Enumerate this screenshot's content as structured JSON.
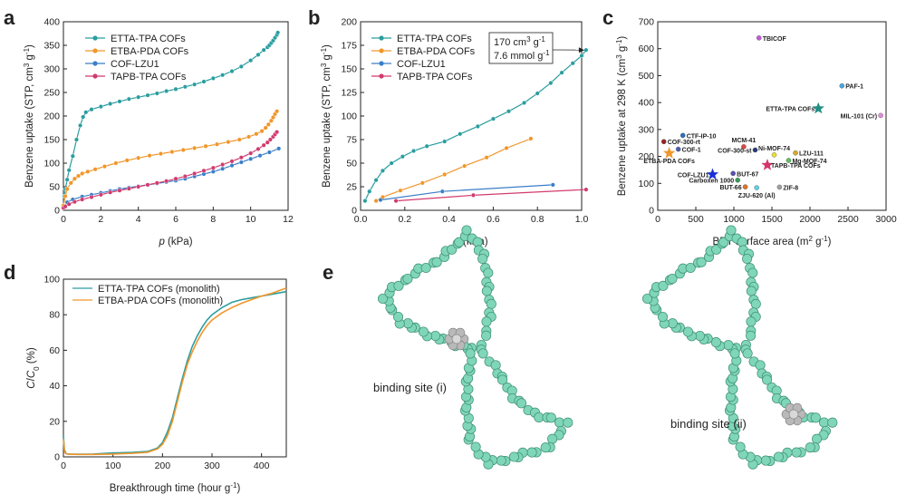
{
  "figure": {
    "panel_letters": [
      "a",
      "b",
      "c",
      "d",
      "e"
    ]
  },
  "chart_data": [
    {
      "panel": "a",
      "type": "line",
      "xlabel": "p (kPa)",
      "ylabel": "Benzene uptake (STP, cm3 g-1)",
      "xlim": [
        0,
        12
      ],
      "ylim": [
        0,
        400
      ],
      "xticks": [
        0,
        2,
        4,
        6,
        8,
        10,
        12
      ],
      "yticks": [
        0,
        50,
        100,
        150,
        200,
        250,
        300,
        350,
        400
      ],
      "legend_position": "top-left",
      "series": [
        {
          "name": "ETTA-TPA COFs",
          "color": "#2a9d9f",
          "x": [
            0,
            0.05,
            0.1,
            0.2,
            0.3,
            0.5,
            0.7,
            0.9,
            1.05,
            1.2,
            1.5,
            2.0,
            2.5,
            3.0,
            3.5,
            4.0,
            4.5,
            5.0,
            5.5,
            6.0,
            6.5,
            7.0,
            7.5,
            8.0,
            8.5,
            9.0,
            9.5,
            10.0,
            10.4,
            10.7,
            10.9,
            11.0,
            11.1,
            11.2,
            11.3,
            11.4,
            11.45
          ],
          "y": [
            10,
            30,
            45,
            65,
            85,
            115,
            150,
            180,
            198,
            208,
            214,
            220,
            226,
            231,
            236,
            240,
            244,
            248,
            253,
            257,
            262,
            267,
            273,
            280,
            287,
            295,
            305,
            318,
            330,
            340,
            346,
            350,
            355,
            360,
            366,
            372,
            377
          ]
        },
        {
          "name": "ETBA-PDA COFs",
          "color": "#f0962a",
          "x": [
            0,
            0.1,
            0.2,
            0.4,
            0.6,
            0.8,
            1.0,
            1.3,
            1.7,
            2.2,
            2.8,
            3.4,
            4.0,
            4.6,
            5.2,
            5.8,
            6.4,
            7.0,
            7.6,
            8.2,
            8.8,
            9.4,
            9.9,
            10.3,
            10.6,
            10.8,
            10.95,
            11.1,
            11.2,
            11.3,
            11.4
          ],
          "y": [
            10,
            30,
            45,
            58,
            67,
            73,
            78,
            82,
            87,
            93,
            100,
            106,
            111,
            116,
            120,
            124,
            128,
            132,
            136,
            140,
            145,
            150,
            156,
            162,
            168,
            175,
            182,
            190,
            197,
            204,
            210
          ]
        },
        {
          "name": "COF-LZU1",
          "color": "#3a7ec8",
          "x": [
            0,
            0.2,
            0.5,
            1.0,
            1.5,
            2.0,
            2.5,
            3.0,
            3.5,
            4.0,
            4.5,
            5.0,
            5.5,
            6.0,
            6.5,
            7.0,
            7.5,
            8.0,
            8.5,
            9.0,
            9.5,
            10.0,
            10.5,
            11.0,
            11.5
          ],
          "y": [
            5,
            17,
            23,
            29,
            33,
            37,
            41,
            45,
            48,
            51,
            54,
            57,
            60,
            63,
            67,
            72,
            77,
            82,
            88,
            95,
            102,
            109,
            116,
            123,
            131
          ]
        },
        {
          "name": "TAPB-TPA COFs",
          "color": "#d13b6e",
          "x": [
            0,
            0.1,
            0.3,
            0.6,
            1.0,
            1.5,
            2.0,
            2.5,
            3.0,
            3.5,
            4.0,
            4.5,
            5.0,
            5.5,
            6.0,
            6.5,
            7.0,
            7.5,
            8.0,
            8.5,
            9.0,
            9.5,
            10.0,
            10.4,
            10.7,
            10.9,
            11.05,
            11.2,
            11.3,
            11.4
          ],
          "y": [
            5,
            8,
            13,
            18,
            23,
            28,
            33,
            38,
            42,
            46,
            50,
            54,
            58,
            62,
            67,
            72,
            78,
            84,
            90,
            97,
            104,
            112,
            121,
            130,
            138,
            144,
            150,
            156,
            161,
            166
          ]
        }
      ]
    },
    {
      "panel": "b",
      "type": "line",
      "xlabel": "p (kPa)",
      "ylabel": "Benzene uptake (STP, cm3 g-1)",
      "xlim": [
        0,
        1.0
      ],
      "ylim": [
        0,
        200
      ],
      "xticks": [
        0.0,
        0.2,
        0.4,
        0.6,
        0.8,
        1.0
      ],
      "yticks": [
        0,
        25,
        50,
        75,
        100,
        125,
        150,
        175,
        200
      ],
      "legend_position": "top-left",
      "annotation": {
        "line1": "170 cm3 g-1",
        "line2": "7.6 mmol g-1",
        "x": 1.02,
        "y": 170
      },
      "series": [
        {
          "name": "ETTA-TPA COFs",
          "color": "#2a9d9f",
          "x": [
            0.02,
            0.04,
            0.07,
            0.1,
            0.14,
            0.19,
            0.24,
            0.3,
            0.38,
            0.45,
            0.53,
            0.6,
            0.67,
            0.74,
            0.8,
            0.86,
            0.91,
            0.96,
            1.0,
            1.02
          ],
          "y": [
            10,
            20,
            32,
            42,
            50,
            57,
            63,
            68,
            73,
            81,
            89,
            97,
            105,
            114,
            124,
            135,
            146,
            156,
            164,
            170
          ]
        },
        {
          "name": "ETBA-PDA COFs",
          "color": "#f0962a",
          "x": [
            0.07,
            0.1,
            0.18,
            0.28,
            0.38,
            0.47,
            0.57,
            0.66,
            0.77
          ],
          "y": [
            10,
            14,
            21,
            29,
            38,
            47,
            56,
            66,
            76
          ]
        },
        {
          "name": "COF-LZU1",
          "color": "#3a7ec8",
          "x": [
            0.09,
            0.37,
            0.87
          ],
          "y": [
            11,
            20,
            27
          ]
        },
        {
          "name": "TAPB-TPA COFs",
          "color": "#d13b6e",
          "x": [
            0.16,
            0.51,
            1.02
          ],
          "y": [
            10,
            16,
            22
          ]
        }
      ]
    },
    {
      "panel": "c",
      "type": "scatter",
      "xlabel": "BET surface area (m2 g-1)",
      "ylabel": "Benzene uptake at 298 K (cm3 g-1)",
      "xlim": [
        0,
        3000
      ],
      "ylim": [
        0,
        700
      ],
      "xticks": [
        0,
        500,
        1000,
        1500,
        2000,
        2500,
        3000
      ],
      "yticks": [
        0,
        100,
        200,
        300,
        400,
        500,
        600,
        700
      ],
      "points": [
        {
          "label": "TBICOF",
          "x": 1330,
          "y": 640,
          "color": "#c35bd6",
          "marker": "circle",
          "label_side": "right"
        },
        {
          "label": "PAF-1",
          "x": 2420,
          "y": 462,
          "color": "#4aa3e0",
          "marker": "circle",
          "label_side": "right"
        },
        {
          "label": "ETTA-TPA COFs",
          "x": 2110,
          "y": 378,
          "color": "#1f8f84",
          "marker": "star",
          "label_side": "left"
        },
        {
          "label": "MIL-101 (Cr)",
          "x": 2930,
          "y": 352,
          "color": "#e58ad8",
          "marker": "circle",
          "label_side": "left"
        },
        {
          "label": "CTF-IP-10",
          "x": 330,
          "y": 278,
          "color": "#2f6fb5",
          "marker": "circle",
          "label_side": "right"
        },
        {
          "label": "COF-300-rt",
          "x": 80,
          "y": 255,
          "color": "#9c2424",
          "marker": "circle",
          "label_side": "right"
        },
        {
          "label": "MCM-41",
          "x": 1130,
          "y": 236,
          "color": "#e04848",
          "marker": "circle",
          "label_side": "top"
        },
        {
          "label": "COF-300-st",
          "x": 1280,
          "y": 224,
          "color": "#2a3b7a",
          "marker": "circle",
          "label_side": "left"
        },
        {
          "label": "COF-1",
          "x": 270,
          "y": 227,
          "color": "#4f5db0",
          "marker": "circle",
          "label_side": "right"
        },
        {
          "label": "Ni-MOF-74",
          "x": 1530,
          "y": 206,
          "color": "#e8de3a",
          "marker": "circle",
          "label_side": "top"
        },
        {
          "label": "LZU-111",
          "x": 1810,
          "y": 213,
          "color": "#d8a830",
          "marker": "circle",
          "label_side": "right"
        },
        {
          "label": "ETBA-PDA COFs",
          "x": 150,
          "y": 212,
          "color": "#f0962a",
          "marker": "star",
          "label_side": "bottom"
        },
        {
          "label": "Mg-MOF-74",
          "x": 1720,
          "y": 185,
          "color": "#5fbf5f",
          "marker": "circle",
          "label_side": "right"
        },
        {
          "label": "TAPB-TPA COFs",
          "x": 1440,
          "y": 168,
          "color": "#d6336c",
          "marker": "star",
          "label_side": "right"
        },
        {
          "label": "BUT-67",
          "x": 990,
          "y": 137,
          "color": "#5a4fb5",
          "marker": "circle",
          "label_side": "right"
        },
        {
          "label": "COF-LZU1",
          "x": 720,
          "y": 133,
          "color": "#1a2fd6",
          "marker": "star",
          "label_side": "left"
        },
        {
          "label": "Carboxen 1000",
          "x": 1050,
          "y": 112,
          "color": "#3a9a5a",
          "marker": "circle",
          "label_side": "left"
        },
        {
          "label": "BUT-66",
          "x": 1150,
          "y": 87,
          "color": "#d9772a",
          "marker": "circle",
          "label_side": "left"
        },
        {
          "label": "ZJU-620 (Al)",
          "x": 1300,
          "y": 84,
          "color": "#5fd0e8",
          "marker": "circle",
          "label_side": "bottom"
        },
        {
          "label": "ZIF-8",
          "x": 1600,
          "y": 86,
          "color": "#a0a0a0",
          "marker": "circle",
          "label_side": "right"
        }
      ]
    },
    {
      "panel": "d",
      "type": "line",
      "xlabel": "Breakthrough time (hour g-1)",
      "ylabel": "C/C0 (%)",
      "xlim": [
        0,
        450
      ],
      "ylim": [
        0,
        100
      ],
      "xticks": [
        0,
        100,
        200,
        300,
        400
      ],
      "yticks": [
        0,
        20,
        40,
        60,
        80,
        100
      ],
      "legend_position": "top-left",
      "series": [
        {
          "name": "ETTA-TPA COFs (monolith)",
          "color": "#2a9d9f",
          "x": [
            0,
            2,
            5,
            10,
            30,
            60,
            100,
            140,
            170,
            190,
            200,
            210,
            220,
            230,
            240,
            250,
            260,
            270,
            280,
            290,
            300,
            320,
            340,
            360,
            380,
            400,
            420,
            440,
            450
          ],
          "y": [
            12,
            4,
            2,
            1.5,
            1.5,
            1.6,
            2.2,
            2.5,
            3,
            5,
            8,
            14,
            22,
            33,
            44,
            54,
            62,
            68,
            73,
            77,
            80,
            84,
            87,
            88.5,
            89.5,
            90.5,
            91.5,
            92.5,
            93
          ]
        },
        {
          "name": "ETBA-PDA COFs (monolith)",
          "color": "#f0962a",
          "x": [
            0,
            2,
            5,
            10,
            30,
            60,
            100,
            140,
            170,
            190,
            200,
            210,
            220,
            230,
            240,
            250,
            260,
            270,
            280,
            290,
            300,
            320,
            340,
            360,
            380,
            400,
            420,
            440,
            450
          ],
          "y": [
            10,
            3,
            1.8,
            1.5,
            1.4,
            1.4,
            1.6,
            2,
            2.6,
            4.5,
            7,
            12,
            20,
            31,
            42,
            52,
            59,
            65,
            70,
            74,
            77,
            81,
            84,
            86.5,
            88.5,
            90.5,
            92,
            94,
            95
          ]
        }
      ]
    }
  ],
  "panel_e": {
    "labels": [
      "binding site (i)",
      "binding site (ii)"
    ],
    "framework_color": "#7fd6b8",
    "framework_dark": "#3f8f75",
    "guest_color": "#b9b9b9"
  }
}
